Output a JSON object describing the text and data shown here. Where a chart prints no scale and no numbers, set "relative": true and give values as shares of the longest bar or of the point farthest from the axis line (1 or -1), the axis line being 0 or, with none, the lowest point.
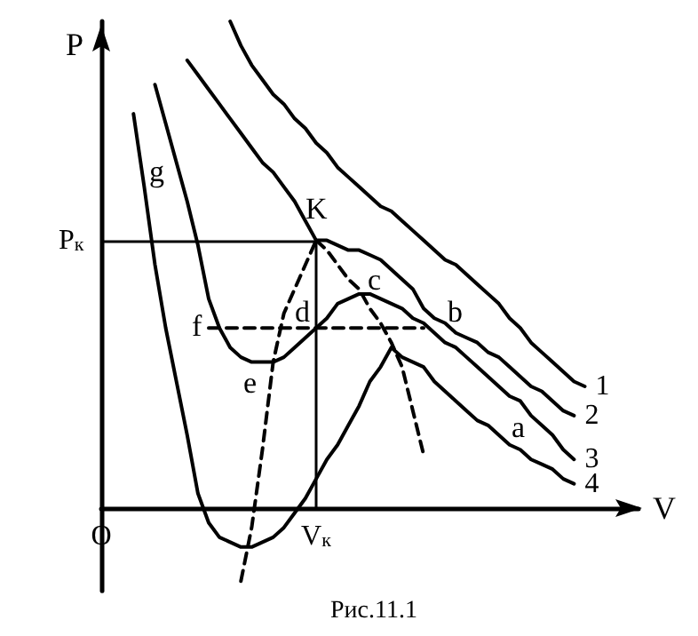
{
  "chart_data": {
    "type": "line",
    "relative": true,
    "xlabel": "V",
    "ylabel": "P",
    "tick_labels": "x",
    "marker": "none",
    "categories": [
      "O",
      null,
      null,
      null,
      null,
      null,
      null,
      null,
      null,
      null,
      null,
      null,
      null,
      null,
      null,
      null,
      null,
      null,
      null,
      null,
      "V$_{к}$",
      null,
      null,
      null,
      null,
      null,
      null,
      null,
      null,
      null,
      null,
      null,
      null,
      null,
      null,
      null,
      null,
      null,
      null,
      null,
      null,
      null,
      null,
      null,
      null,
      null,
      null,
      null,
      null,
      null,
      null
    ],
    "series": [
      {
        "name": "1",
        "color": "#000000",
        "line_style": "solid",
        "values": [
          null,
          null,
          null,
          null,
          null,
          null,
          null,
          null,
          null,
          null,
          null,
          null,
          1.0,
          0.95,
          0.91,
          0.88,
          0.85,
          0.83,
          0.8,
          0.78,
          0.75,
          0.73,
          0.7,
          0.68,
          0.66,
          0.64,
          0.62,
          0.61,
          0.59,
          0.57,
          0.55,
          0.53,
          0.51,
          0.5,
          0.48,
          0.46,
          0.44,
          0.42,
          0.39,
          0.37,
          0.34,
          0.32,
          0.3,
          0.28,
          0.26,
          0.25,
          null,
          null,
          null,
          null,
          null
        ]
      },
      {
        "name": "2",
        "color": "#000000",
        "line_style": "solid",
        "values": [
          null,
          null,
          null,
          null,
          null,
          null,
          null,
          null,
          0.92,
          0.89,
          0.86,
          0.83,
          0.8,
          0.77,
          0.74,
          0.71,
          0.69,
          0.66,
          0.63,
          0.59,
          0.55,
          0.55,
          0.54,
          0.53,
          0.53,
          0.52,
          0.51,
          0.49,
          0.47,
          0.45,
          0.41,
          0.39,
          0.38,
          0.36,
          0.35,
          0.34,
          0.32,
          0.31,
          0.29,
          0.27,
          0.25,
          0.24,
          0.22,
          0.2,
          0.19,
          null,
          null,
          null,
          null,
          null,
          null
        ]
      },
      {
        "name": "3",
        "color": "#000000",
        "line_style": "solid",
        "values": [
          null,
          null,
          null,
          null,
          null,
          0.87,
          0.79,
          0.71,
          0.63,
          0.54,
          0.43,
          0.37,
          0.33,
          0.31,
          0.3,
          0.3,
          0.3,
          0.31,
          0.33,
          0.35,
          0.37,
          0.39,
          0.42,
          0.43,
          0.44,
          0.44,
          0.43,
          0.42,
          0.41,
          0.39,
          0.38,
          0.36,
          0.34,
          0.33,
          0.31,
          0.29,
          0.27,
          0.25,
          0.23,
          0.22,
          0.19,
          0.17,
          0.15,
          0.12,
          0.1,
          null,
          null,
          null,
          null,
          null,
          null
        ]
      },
      {
        "name": "4",
        "color": "#000000",
        "line_style": "solid",
        "values": [
          null,
          null,
          null,
          0.81,
          0.66,
          0.5,
          0.37,
          0.26,
          0.15,
          0.03,
          -0.03,
          -0.06,
          -0.07,
          -0.08,
          -0.08,
          -0.07,
          -0.06,
          -0.04,
          -0.01,
          0.02,
          0.06,
          0.1,
          0.13,
          0.17,
          0.21,
          0.26,
          0.29,
          0.33,
          0.31,
          0.3,
          0.29,
          0.26,
          0.24,
          0.22,
          0.2,
          0.18,
          0.17,
          0.15,
          0.13,
          0.12,
          0.1,
          0.09,
          0.08,
          0.06,
          0.05,
          null,
          null,
          null,
          null,
          null,
          null
        ]
      },
      {
        "color": "#000000",
        "line_style": "dashed",
        "values": [
          null,
          null,
          null,
          null,
          null,
          null,
          null,
          null,
          null,
          null,
          0.37,
          0.37,
          0.37,
          0.37,
          0.37,
          0.37,
          0.37,
          0.37,
          0.37,
          0.37,
          0.37,
          0.37,
          0.37,
          0.37,
          0.37,
          0.37,
          0.37,
          0.37,
          0.37,
          0.37,
          0.37,
          null,
          null,
          null,
          null,
          null,
          null,
          null,
          null,
          null,
          null,
          null,
          null,
          null,
          null,
          null,
          null,
          null,
          null,
          null,
          null
        ]
      },
      {
        "color": "#000000",
        "line_style": "dashed",
        "values": [
          null,
          null,
          null,
          null,
          null,
          null,
          null,
          null,
          null,
          null,
          null,
          null,
          null,
          -0.15,
          -0.04,
          0.12,
          0.3,
          0.4,
          0.45,
          0.5,
          0.55,
          null,
          null,
          null,
          null,
          null,
          null,
          null,
          null,
          null,
          null,
          null,
          null,
          null,
          null,
          null,
          null,
          null,
          null,
          null,
          null,
          null,
          null,
          null,
          null,
          null,
          null,
          null,
          null,
          null,
          null
        ]
      },
      {
        "color": "#000000",
        "line_style": "dashed",
        "values": [
          null,
          null,
          null,
          null,
          null,
          null,
          null,
          null,
          null,
          null,
          null,
          null,
          null,
          null,
          null,
          null,
          null,
          null,
          null,
          null,
          0.55,
          0.53,
          0.5,
          0.47,
          0.45,
          0.41,
          0.38,
          0.34,
          0.29,
          0.2,
          0.11,
          null,
          null,
          null,
          null,
          null,
          null,
          null,
          null,
          null,
          null,
          null,
          null,
          null,
          null,
          null,
          null,
          null,
          null,
          null,
          null
        ]
      }
    ],
    "ref_lines": [
      {
        "axis": "y",
        "value": 0.55,
        "label": "P$_{к}$",
        "color": "#000000"
      },
      {
        "axis": "x",
        "value": "V$_{к}$",
        "color": "#000000"
      }
    ],
    "annotations": [
      "g",
      "K",
      "c",
      "d",
      "f",
      "b",
      "e",
      "a",
      "Рис.11.1"
    ]
  }
}
